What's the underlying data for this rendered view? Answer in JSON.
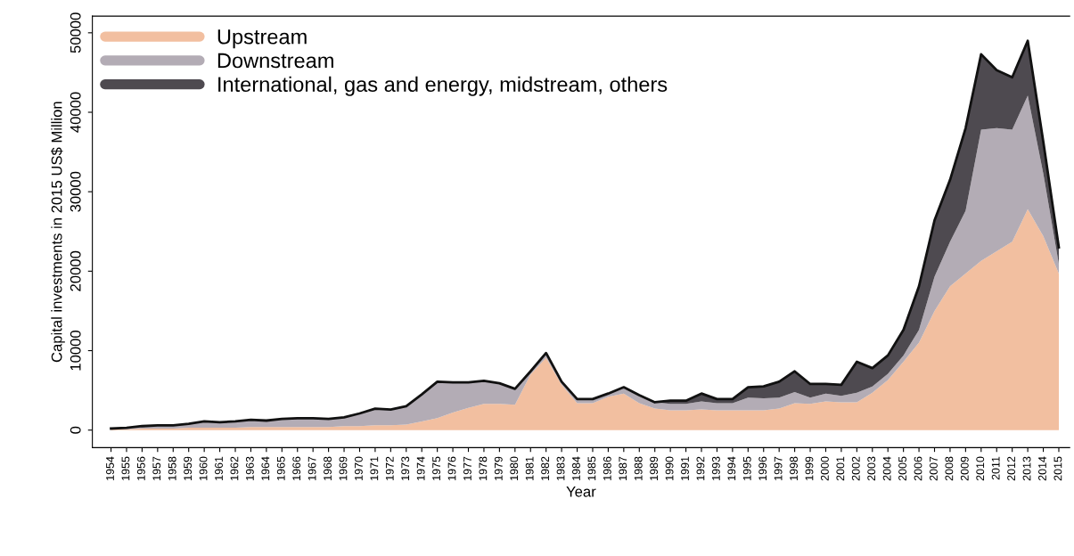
{
  "chart_data": {
    "type": "area",
    "stacked": true,
    "xlabel": "Year",
    "ylabel": "Capital investments in 2015 US$ Million",
    "categories": [
      "1954",
      "1955",
      "1956",
      "1957",
      "1958",
      "1959",
      "1960",
      "1961",
      "1962",
      "1963",
      "1964",
      "1965",
      "1966",
      "1967",
      "1968",
      "1969",
      "1970",
      "1971",
      "1972",
      "1973",
      "1974",
      "1975",
      "1976",
      "1977",
      "1978",
      "1979",
      "1980",
      "1981",
      "1982",
      "1983",
      "1984",
      "1985",
      "1986",
      "1987",
      "1988",
      "1989",
      "1990",
      "1991",
      "1992",
      "1993",
      "1994",
      "1995",
      "1996",
      "1997",
      "1998",
      "1999",
      "2000",
      "2001",
      "2002",
      "2003",
      "2004",
      "2005",
      "2006",
      "2007",
      "2008",
      "2009",
      "2010",
      "2011",
      "2012",
      "2013",
      "2014",
      "2015"
    ],
    "series": [
      {
        "name": "Upstream",
        "color": "#f2bfa0",
        "values": [
          100,
          100,
          200,
          200,
          200,
          300,
          300,
          300,
          300,
          400,
          400,
          400,
          400,
          400,
          400,
          500,
          500,
          600,
          600,
          700,
          1100,
          1500,
          2200,
          2800,
          3300,
          3300,
          3200,
          7000,
          9100,
          5700,
          3400,
          3400,
          4200,
          4600,
          3400,
          2700,
          2500,
          2500,
          2600,
          2500,
          2500,
          2500,
          2500,
          2700,
          3400,
          3300,
          3600,
          3500,
          3500,
          4700,
          6300,
          8600,
          11000,
          15000,
          18100,
          19700,
          21300,
          22500,
          23700,
          27800,
          24400,
          19700
        ]
      },
      {
        "name": "Downstream",
        "color": "#b3acb5",
        "values": [
          100,
          200,
          300,
          400,
          400,
          500,
          800,
          700,
          800,
          900,
          800,
          1000,
          1100,
          1100,
          1000,
          1100,
          1600,
          2100,
          2000,
          2300,
          3400,
          4600,
          3800,
          3200,
          2900,
          2600,
          2000,
          400,
          600,
          400,
          500,
          500,
          400,
          800,
          1000,
          800,
          800,
          800,
          1000,
          900,
          900,
          1600,
          1500,
          1400,
          1400,
          800,
          1000,
          800,
          1200,
          800,
          800,
          800,
          1600,
          4300,
          5600,
          7900,
          16500,
          15500,
          14100,
          14300,
          7900,
          1200
        ]
      },
      {
        "name": "International, gas and energy, midstream, others",
        "color": "#4e4a50",
        "values": [
          0,
          0,
          0,
          0,
          0,
          0,
          0,
          0,
          0,
          0,
          0,
          0,
          0,
          0,
          0,
          0,
          0,
          0,
          0,
          0,
          0,
          0,
          0,
          0,
          0,
          0,
          0,
          0,
          0,
          0,
          0,
          0,
          0,
          0,
          0,
          0,
          400,
          400,
          1000,
          500,
          500,
          1300,
          1500,
          2000,
          2600,
          1700,
          1200,
          1400,
          3900,
          2300,
          2300,
          3200,
          5500,
          7100,
          7800,
          10400,
          9500,
          7300,
          6600,
          6900,
          4000,
          2100
        ]
      }
    ],
    "ylim": [
      -2200,
      52100
    ],
    "yticks": [
      0,
      10000,
      20000,
      30000,
      40000,
      50000
    ],
    "grid": false,
    "legend": "top left"
  }
}
